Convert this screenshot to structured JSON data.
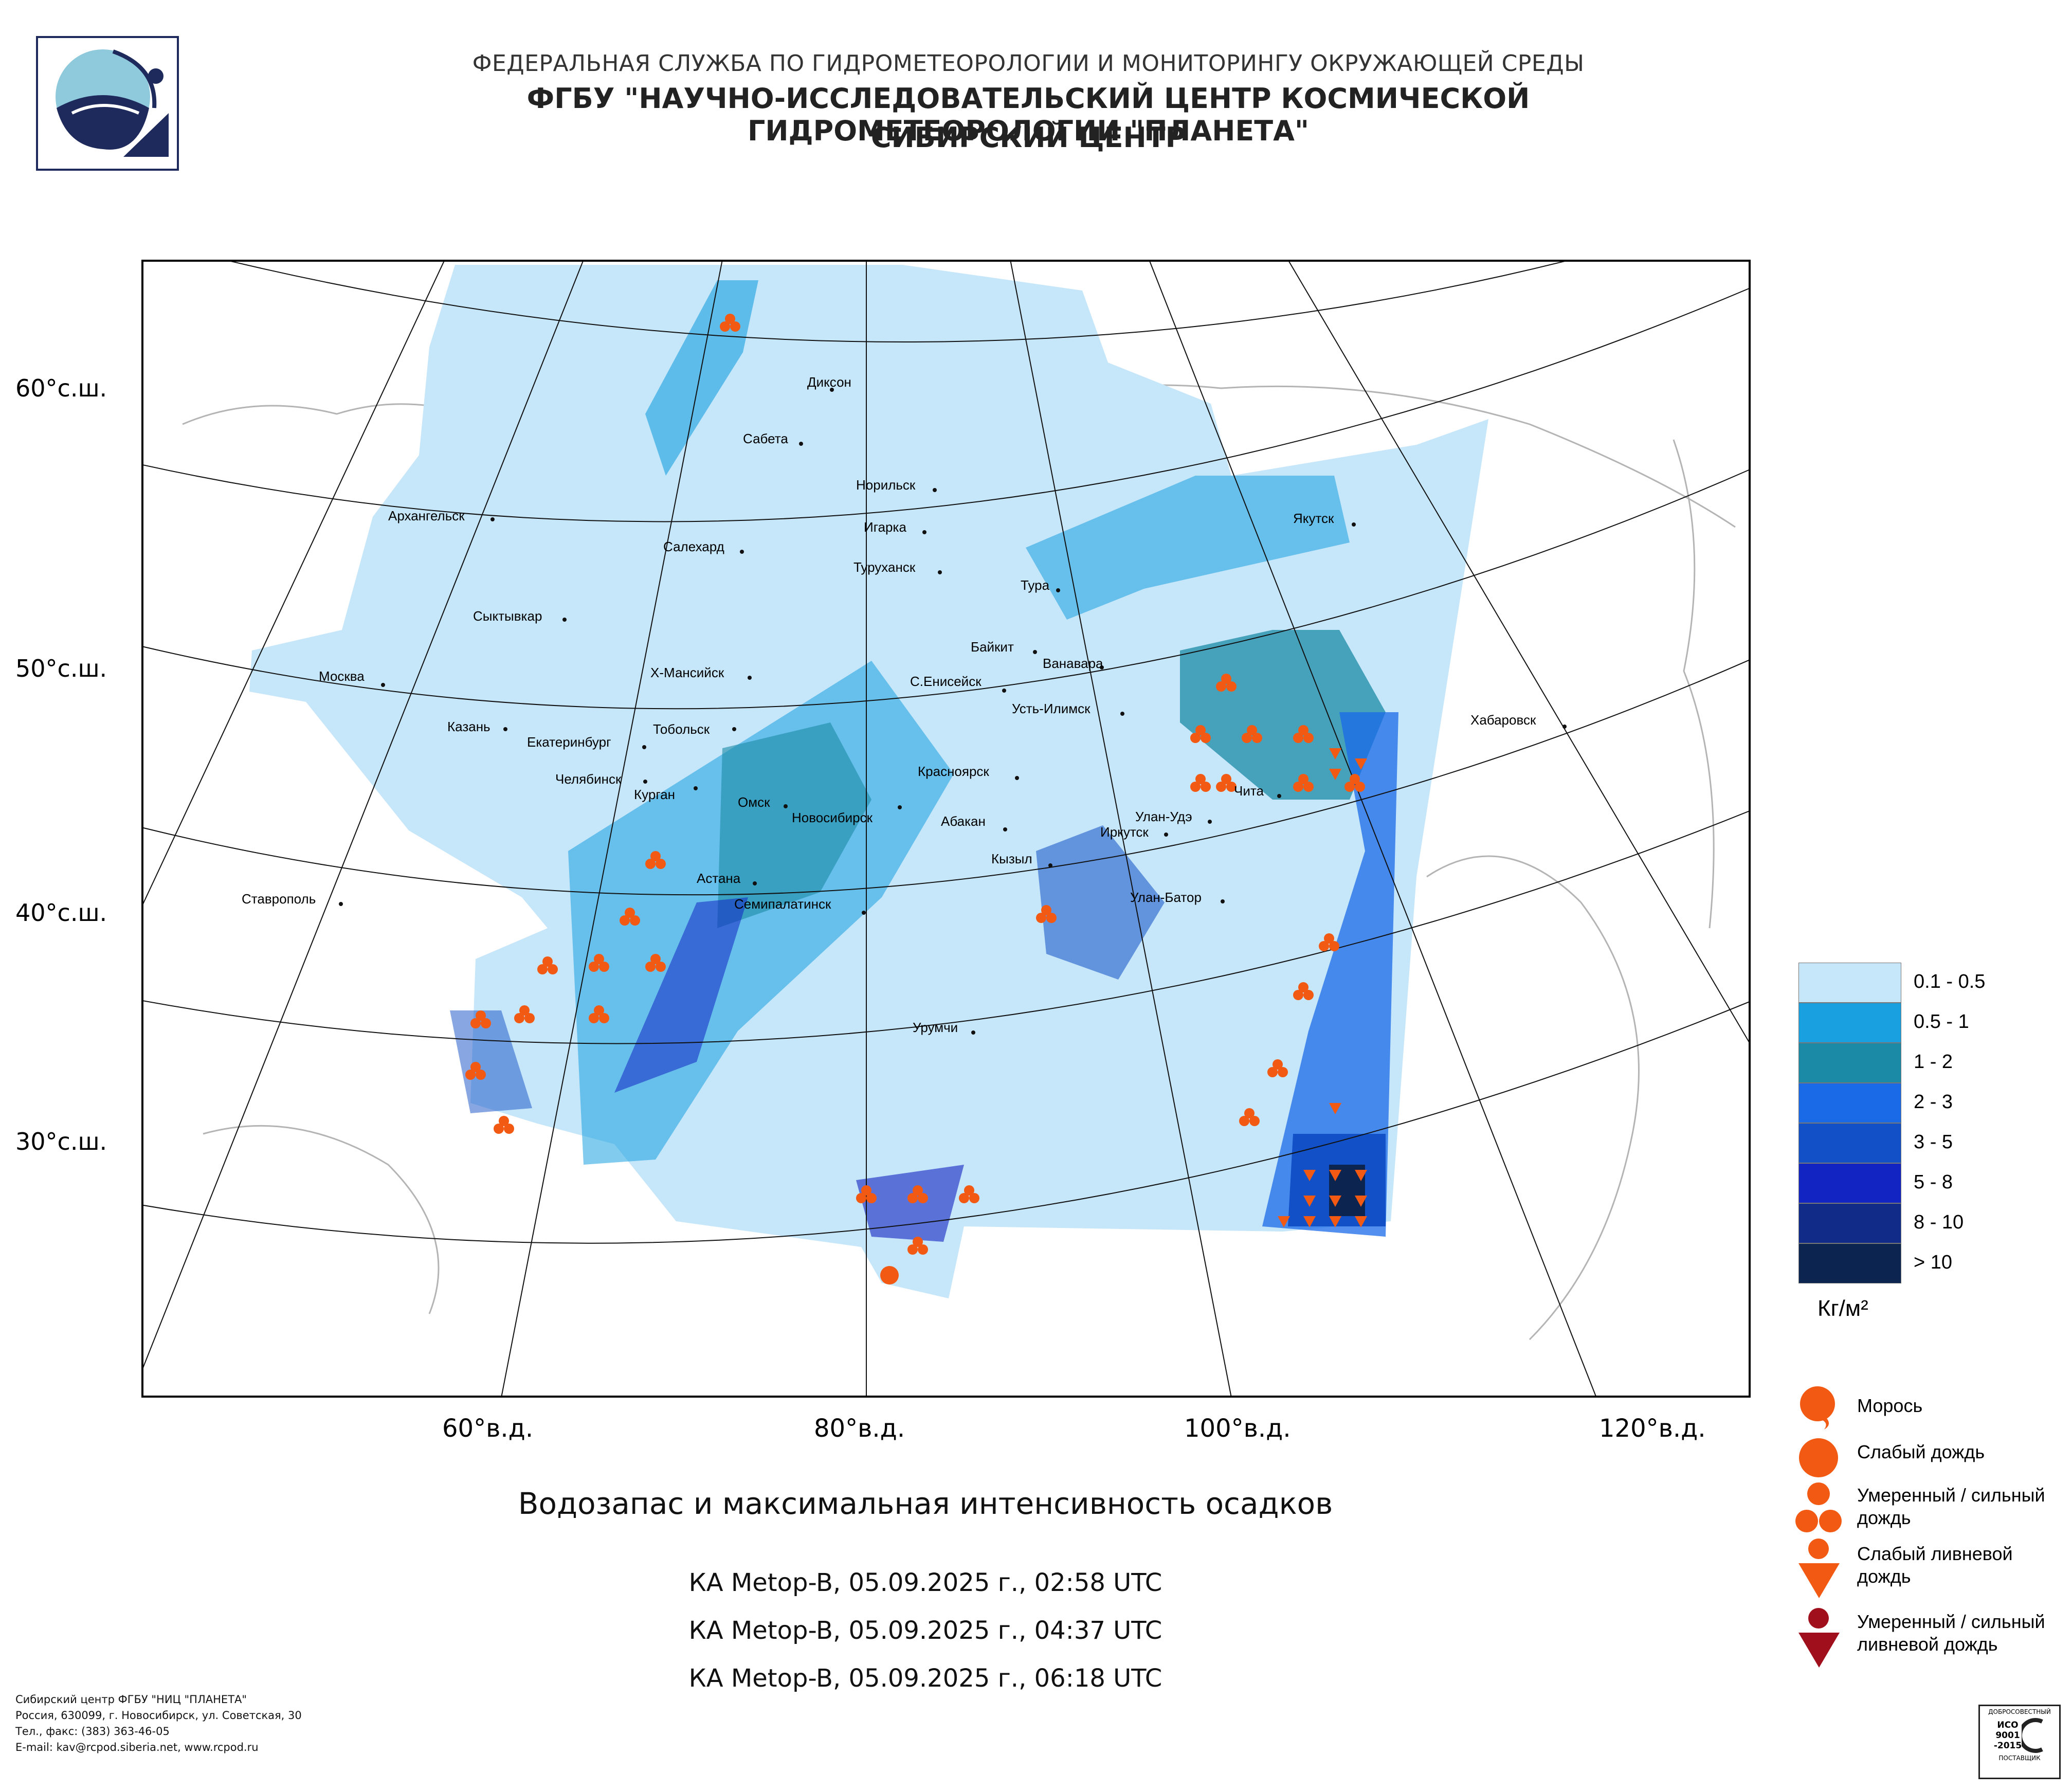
{
  "header": {
    "line1": "ФЕДЕРАЛЬНАЯ СЛУЖБА ПО ГИДРОМЕТЕОРОЛОГИИ И МОНИТОРИНГУ ОКРУЖАЮЩЕЙ СРЕДЫ",
    "line2": "ФГБУ \"НАУЧНО-ИССЛЕДОВАТЕЛЬСКИЙ ЦЕНТР КОСМИЧЕСКОЙ ГИДРОМЕТЕОРОЛОГИИ \"ПЛАНЕТА\"",
    "line3": "СИБИРСКИЙ ЦЕНТР"
  },
  "map": {
    "lat_labels": [
      "60°с.ш.",
      "50°с.ш.",
      "40°с.ш.",
      "30°с.ш."
    ],
    "lon_labels": [
      "60°в.д.",
      "80°в.д.",
      "100°в.д.",
      "120°в.д."
    ],
    "cities": [
      "Диксон",
      "Сабета",
      "Норильск",
      "Игарка",
      "Туруханск",
      "Салехард",
      "Архангельск",
      "Сыктывкар",
      "Якутск",
      "Тура",
      "Байкит",
      "Ванавара",
      "С.Енисейск",
      "Усть-Илимск",
      "Х-Мансийск",
      "Москва",
      "Казань",
      "Екатеринбург",
      "Тобольск",
      "Челябинск",
      "Курган",
      "Омск",
      "Новосибирск",
      "Красноярск",
      "Абакан",
      "Иркутск",
      "Улан-Удэ",
      "Чита",
      "Хабаровск",
      "Кызыл",
      "Астана",
      "Семипалатинск",
      "Улан-Батор",
      "Ставрополь",
      "Урумчи"
    ]
  },
  "title": "Водозапас и максимальная интенсивность осадков",
  "passes": [
    "КА Metop-B, 05.09.2025 г., 02:58 UTC",
    "КА Metop-B, 05.09.2025 г., 04:37 UTC",
    "КА Metop-B, 05.09.2025 г., 06:18 UTC"
  ],
  "legend": {
    "classes": [
      {
        "label": "0.1 - 0.5",
        "color": "#c6e6fa"
      },
      {
        "label": "0.5 - 1",
        "color": "#19a0e0"
      },
      {
        "label": "1 - 2",
        "color": "#1b8aa6"
      },
      {
        "label": "2 - 3",
        "color": "#1a6ae8"
      },
      {
        "label": "3 - 5",
        "color": "#1150c6"
      },
      {
        "label": "5 - 8",
        "color": "#1225c2"
      },
      {
        "label": "8 - 10",
        "color": "#102b88"
      },
      {
        "label": "> 10",
        "color": "#0c2450"
      }
    ],
    "unit": "Кг/м²"
  },
  "symbols": [
    {
      "label": "Морось"
    },
    {
      "label": "Слабый дождь"
    },
    {
      "label": "Умеренный / сильный дождь"
    },
    {
      "label": "Слабый ливневой дождь"
    },
    {
      "label": "Умеренный / сильный ливневой дождь"
    }
  ],
  "symbol_colors": {
    "rain": "#f25a14",
    "heavy_shower": "#a0101c"
  },
  "footer": {
    "line1": "Сибирский центр ФГБУ \"НИЦ \"ПЛАНЕТА\"",
    "line2": "Россия, 630099, г. Новосибирск, ул. Советская, 30",
    "line3": "Тел., факс: (383) 363-46-05",
    "line4": "E-mail: kav@rcpod.siberia.net, www.rcpod.ru"
  },
  "iso_badge": {
    "top": "ДОБРОСОВЕСТНЫЙ",
    "line1": "ИСО",
    "line2": "9001",
    "line3": "-2015",
    "bottom": "ПОСТАВЩИК"
  }
}
